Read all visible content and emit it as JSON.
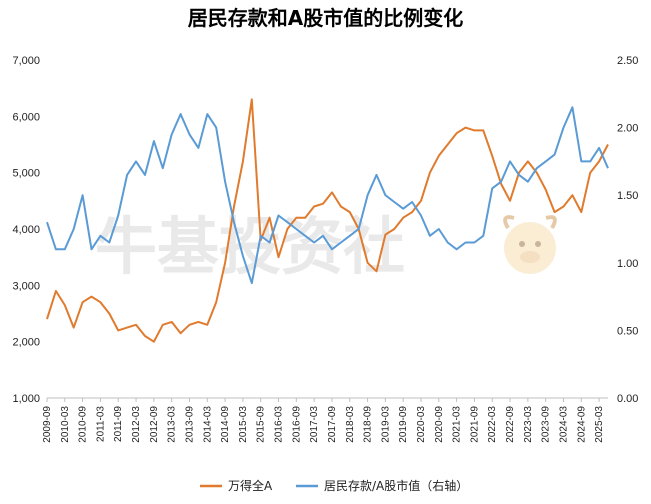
{
  "chart_data": {
    "type": "line",
    "title": "居民存款和A股市值的比例变化",
    "watermark": "牛基投资社",
    "x": [
      "2009-09",
      "2009-12",
      "2010-03",
      "2010-06",
      "2010-09",
      "2010-12",
      "2011-03",
      "2011-06",
      "2011-09",
      "2011-12",
      "2012-03",
      "2012-06",
      "2012-09",
      "2012-12",
      "2013-03",
      "2013-06",
      "2013-09",
      "2013-12",
      "2014-03",
      "2014-06",
      "2014-09",
      "2014-12",
      "2015-03",
      "2015-06",
      "2015-09",
      "2015-12",
      "2016-03",
      "2016-06",
      "2016-09",
      "2016-12",
      "2017-03",
      "2017-06",
      "2017-09",
      "2017-12",
      "2018-03",
      "2018-06",
      "2018-09",
      "2018-12",
      "2019-03",
      "2019-06",
      "2019-09",
      "2019-12",
      "2020-03",
      "2020-06",
      "2020-09",
      "2020-12",
      "2021-03",
      "2021-06",
      "2021-09",
      "2021-12",
      "2022-03",
      "2022-06",
      "2022-09",
      "2022-12",
      "2023-03",
      "2023-06",
      "2023-09",
      "2023-12",
      "2024-03",
      "2024-06",
      "2024-09",
      "2024-12",
      "2025-03",
      "2025-06"
    ],
    "x_tick_labels": [
      "2009-09",
      "2010-03",
      "2010-09",
      "2011-03",
      "2011-09",
      "2012-03",
      "2012-09",
      "2013-03",
      "2013-09",
      "2014-03",
      "2014-09",
      "2015-03",
      "2015-09",
      "2016-03",
      "2016-09",
      "2017-03",
      "2017-09",
      "2018-03",
      "2018-09",
      "2019-03",
      "2019-09",
      "2020-03",
      "2020-09",
      "2021-03",
      "2021-09",
      "2022-03",
      "2022-09",
      "2023-03",
      "2023-09",
      "2024-03",
      "2024-09",
      "2025-03"
    ],
    "y_left": {
      "range": [
        1000,
        7000
      ],
      "ticks": [
        "1,000",
        "2,000",
        "3,000",
        "4,000",
        "5,000",
        "6,000",
        "7,000"
      ]
    },
    "y_right": {
      "range": [
        0.0,
        2.5
      ],
      "ticks": [
        "0.00",
        "0.50",
        "1.00",
        "1.50",
        "2.00",
        "2.50"
      ]
    },
    "series": [
      {
        "name": "万得全A",
        "axis": "left",
        "color": "#E07B2E",
        "values": [
          2400,
          2900,
          2650,
          2250,
          2700,
          2800,
          2700,
          2500,
          2200,
          2250,
          2300,
          2100,
          2000,
          2300,
          2350,
          2150,
          2300,
          2350,
          2300,
          2700,
          3400,
          4400,
          5200,
          6300,
          3800,
          4200,
          3500,
          4000,
          4200,
          4200,
          4400,
          4450,
          4650,
          4400,
          4300,
          4000,
          3400,
          3250,
          3900,
          4000,
          4200,
          4300,
          4500,
          5000,
          5300,
          5500,
          5700,
          5800,
          5750,
          5750,
          5300,
          4800,
          4500,
          5000,
          5200,
          5000,
          4700,
          4300,
          4400,
          4600,
          4300,
          5000,
          5200,
          5500
        ]
      },
      {
        "name": "居民存款/A股市值（右轴）",
        "axis": "right",
        "color": "#5B9BD5",
        "values": [
          1.3,
          1.1,
          1.1,
          1.25,
          1.5,
          1.1,
          1.2,
          1.15,
          1.35,
          1.65,
          1.75,
          1.65,
          1.9,
          1.7,
          1.95,
          2.1,
          1.95,
          1.85,
          2.1,
          2.0,
          1.6,
          1.3,
          1.05,
          0.85,
          1.2,
          1.15,
          1.35,
          1.3,
          1.25,
          1.2,
          1.15,
          1.2,
          1.1,
          1.15,
          1.2,
          1.25,
          1.5,
          1.65,
          1.5,
          1.45,
          1.4,
          1.45,
          1.35,
          1.2,
          1.25,
          1.15,
          1.1,
          1.15,
          1.15,
          1.2,
          1.55,
          1.6,
          1.75,
          1.65,
          1.6,
          1.7,
          1.75,
          1.8,
          2.0,
          2.15,
          1.75,
          1.75,
          1.85,
          1.7
        ]
      }
    ],
    "legend": [
      "万得全A",
      "居民存款/A股市值（右轴）"
    ],
    "legend_position": "bottom",
    "grid": false
  }
}
